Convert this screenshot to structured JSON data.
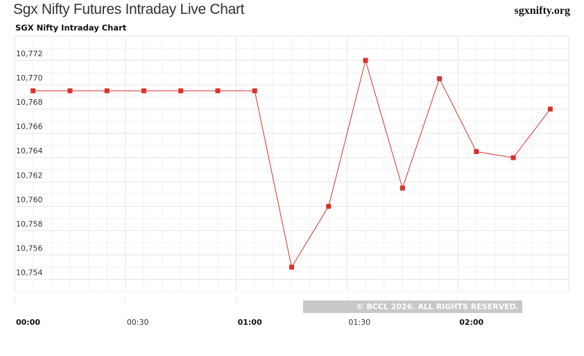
{
  "header": {
    "page_title": "Sgx Nifty Futures Intraday Live Chart",
    "site_name": "sgxnifty.org"
  },
  "chart_data": {
    "type": "line",
    "title": "SGX Nifty Intraday Chart",
    "xlabel": "",
    "ylabel": "",
    "x_ticks": [
      {
        "label": "00:00",
        "minutes": 0,
        "major": true
      },
      {
        "label": "00:30",
        "minutes": 30,
        "major": false
      },
      {
        "label": "01:00",
        "minutes": 60,
        "major": true
      },
      {
        "label": "01:30",
        "minutes": 90,
        "major": false
      },
      {
        "label": "02:00",
        "minutes": 120,
        "major": true
      }
    ],
    "y_ticks": [
      "10,754",
      "10,756",
      "10,758",
      "10,760",
      "10,762",
      "10,764",
      "10,766",
      "10,768",
      "10,770",
      "10,772"
    ],
    "ylim": [
      10753,
      10774
    ],
    "xlim_minutes": [
      0,
      150
    ],
    "grid": true,
    "series": [
      {
        "color": "#d9312b",
        "points": [
          {
            "t": 5,
            "value": 10769.5
          },
          {
            "t": 15,
            "value": 10769.5
          },
          {
            "t": 25,
            "value": 10769.5
          },
          {
            "t": 35,
            "value": 10769.5
          },
          {
            "t": 45,
            "value": 10769.5
          },
          {
            "t": 55,
            "value": 10769.5
          },
          {
            "t": 65,
            "value": 10769.5
          },
          {
            "t": 75,
            "value": 10755.0
          },
          {
            "t": 85,
            "value": 10760.0
          },
          {
            "t": 95,
            "value": 10772.0
          },
          {
            "t": 105,
            "value": 10761.5
          },
          {
            "t": 115,
            "value": 10770.5
          },
          {
            "t": 125,
            "value": 10764.5
          },
          {
            "t": 135,
            "value": 10764.0
          },
          {
            "t": 145,
            "value": 10768.0
          }
        ]
      }
    ]
  },
  "copyright": "© BCCL 2026. ALL RIGHTS RESERVED.",
  "colors": {
    "line": "#d9312b",
    "grid_major": "#e6e6e6",
    "grid_minor": "#f2f2f2",
    "copyright_bg": "#c8c8c8"
  }
}
